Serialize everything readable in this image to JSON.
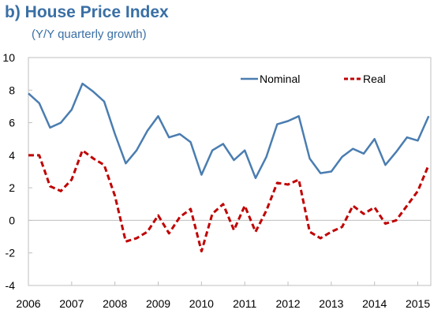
{
  "chart_data": {
    "type": "line",
    "title": "b) House Price Index",
    "subtitle": "(Y/Y quarterly growth)",
    "ylim": [
      -4,
      10
    ],
    "yticks": [
      "10",
      "8",
      "6",
      "4",
      "2",
      "0",
      "-2",
      "-4"
    ],
    "xlim": [
      2006,
      2015.3
    ],
    "xticks": [
      "2006",
      "2007",
      "2008",
      "2009",
      "2010",
      "2011",
      "2012",
      "2013",
      "2014",
      "2015"
    ],
    "legend_position": "top-right",
    "colors": {
      "Nominal": "#4a7db0",
      "Real": "#c00000"
    },
    "series": [
      {
        "name": "Nominal",
        "style": "solid",
        "points": [
          [
            2006.0,
            7.8
          ],
          [
            2006.25,
            7.2
          ],
          [
            2006.5,
            5.7
          ],
          [
            2006.75,
            6.0
          ],
          [
            2007.0,
            6.8
          ],
          [
            2007.25,
            8.4
          ],
          [
            2007.5,
            7.9
          ],
          [
            2007.75,
            7.3
          ],
          [
            2008.0,
            5.3
          ],
          [
            2008.25,
            3.5
          ],
          [
            2008.5,
            4.3
          ],
          [
            2008.75,
            5.5
          ],
          [
            2009.0,
            6.4
          ],
          [
            2009.25,
            5.1
          ],
          [
            2009.5,
            5.3
          ],
          [
            2009.75,
            4.8
          ],
          [
            2010.0,
            2.8
          ],
          [
            2010.25,
            4.3
          ],
          [
            2010.5,
            4.7
          ],
          [
            2010.75,
            3.7
          ],
          [
            2011.0,
            4.3
          ],
          [
            2011.25,
            2.6
          ],
          [
            2011.5,
            3.9
          ],
          [
            2011.75,
            5.9
          ],
          [
            2012.0,
            6.1
          ],
          [
            2012.25,
            6.4
          ],
          [
            2012.5,
            3.8
          ],
          [
            2012.75,
            2.9
          ],
          [
            2013.0,
            3.0
          ],
          [
            2013.25,
            3.9
          ],
          [
            2013.5,
            4.4
          ],
          [
            2013.75,
            4.1
          ],
          [
            2014.0,
            5.0
          ],
          [
            2014.25,
            3.4
          ],
          [
            2014.5,
            4.2
          ],
          [
            2014.75,
            5.1
          ],
          [
            2015.0,
            4.9
          ],
          [
            2015.25,
            6.4
          ]
        ]
      },
      {
        "name": "Real",
        "style": "dashed",
        "points": [
          [
            2006.0,
            4.0
          ],
          [
            2006.25,
            4.0
          ],
          [
            2006.5,
            2.1
          ],
          [
            2006.75,
            1.8
          ],
          [
            2007.0,
            2.5
          ],
          [
            2007.25,
            4.3
          ],
          [
            2007.5,
            3.8
          ],
          [
            2007.75,
            3.4
          ],
          [
            2008.0,
            1.5
          ],
          [
            2008.25,
            -1.3
          ],
          [
            2008.5,
            -1.1
          ],
          [
            2008.75,
            -0.7
          ],
          [
            2009.0,
            0.3
          ],
          [
            2009.25,
            -0.8
          ],
          [
            2009.5,
            0.2
          ],
          [
            2009.75,
            0.7
          ],
          [
            2010.0,
            -1.9
          ],
          [
            2010.25,
            0.4
          ],
          [
            2010.5,
            1.0
          ],
          [
            2010.75,
            -0.6
          ],
          [
            2011.0,
            0.9
          ],
          [
            2011.25,
            -0.7
          ],
          [
            2011.5,
            0.6
          ],
          [
            2011.75,
            2.3
          ],
          [
            2012.0,
            2.2
          ],
          [
            2012.25,
            2.5
          ],
          [
            2012.5,
            -0.7
          ],
          [
            2012.75,
            -1.1
          ],
          [
            2013.0,
            -0.7
          ],
          [
            2013.25,
            -0.4
          ],
          [
            2013.5,
            0.9
          ],
          [
            2013.75,
            0.4
          ],
          [
            2014.0,
            0.8
          ],
          [
            2014.25,
            -0.2
          ],
          [
            2014.5,
            0.0
          ],
          [
            2014.75,
            0.9
          ],
          [
            2015.0,
            1.8
          ],
          [
            2015.25,
            3.4
          ]
        ]
      }
    ]
  }
}
